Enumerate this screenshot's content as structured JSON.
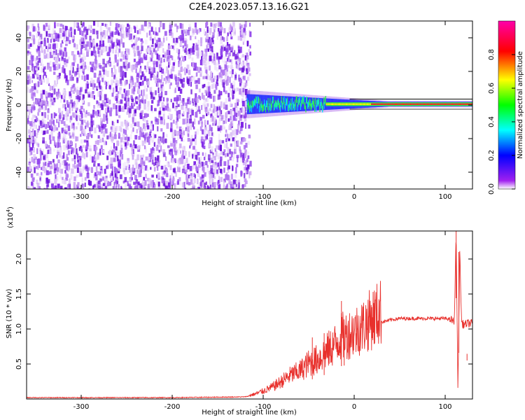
{
  "title": "C2E4.2023.057.13.16.G21",
  "chart_data": [
    {
      "type": "heatmap",
      "xlabel": "Height of straight line (km)",
      "ylabel": "Frequency (Hz)",
      "xlim": [
        -360,
        130
      ],
      "ylim": [
        -50,
        50
      ],
      "xticks": [
        -300,
        -200,
        -100,
        0,
        100
      ],
      "xtick_labels": [
        "-300",
        "-200",
        "-100",
        "0",
        "100"
      ],
      "yticks": [
        -40,
        -20,
        0,
        20,
        40
      ],
      "ytick_labels": [
        "-40",
        "-20",
        "0",
        "20",
        "40"
      ],
      "noise_region_x": [
        -360,
        -115
      ],
      "signal_region_x": [
        -118,
        130
      ],
      "signal_center_freq_hz": 0.5,
      "colorbar": {
        "label": "Normalized spectral amplitude",
        "range": [
          0,
          1
        ],
        "ticks": [
          0.0,
          0.2,
          0.4,
          0.6,
          0.8
        ],
        "tick_labels": [
          "0.0",
          "0.2",
          "0.4",
          "0.6",
          "0.8"
        ],
        "colors": [
          "#a020f0",
          "#0000ff",
          "#00ffff",
          "#00ff00",
          "#ffff00",
          "#ff0000",
          "#ff00aa"
        ]
      }
    },
    {
      "type": "line",
      "xlabel": "Height of straight line (km)",
      "ylabel": "SNR (10 * v/v)",
      "multiplier": "(x10",
      "multiplier_exp": "4",
      "multiplier_close": ")",
      "xlim": [
        -360,
        130
      ],
      "ylim": [
        0,
        24000
      ],
      "xticks": [
        -300,
        -200,
        -100,
        0,
        100
      ],
      "xtick_labels": [
        "-300",
        "-200",
        "-100",
        "0",
        "100"
      ],
      "yticks": [
        5000,
        10000,
        15000,
        20000
      ],
      "ytick_labels": [
        "0.5",
        "1.0",
        "1.5",
        "2.0"
      ],
      "grid": false,
      "color": "#e8302c",
      "x": [
        -360,
        -300,
        -200,
        -120,
        -110,
        -100,
        -90,
        -80,
        -70,
        -60,
        -50,
        -40,
        -30,
        -20,
        -15,
        -10,
        0,
        10,
        20,
        30,
        40,
        50,
        60,
        80,
        100,
        105,
        110,
        112,
        114,
        116,
        118,
        120,
        125,
        130
      ],
      "y": [
        200,
        200,
        200,
        300,
        600,
        1000,
        1500,
        2200,
        3000,
        3500,
        4500,
        5000,
        6000,
        7000,
        7800,
        8000,
        8500,
        9200,
        10200,
        11000,
        11300,
        11500,
        11500,
        11500,
        11500,
        11400,
        11000,
        24000,
        1000,
        21000,
        11000,
        10600,
        10800,
        10800
      ],
      "spikes": [
        {
          "x": -14,
          "y": 14000
        },
        {
          "x": -33,
          "y": 9400
        },
        {
          "x": -46,
          "y": 8800
        },
        {
          "x": -11,
          "y": 10500
        },
        {
          "x": 112,
          "y": 24000
        },
        {
          "x": 115,
          "y": 21000
        },
        {
          "x": 124,
          "y": 5500
        }
      ]
    }
  ]
}
